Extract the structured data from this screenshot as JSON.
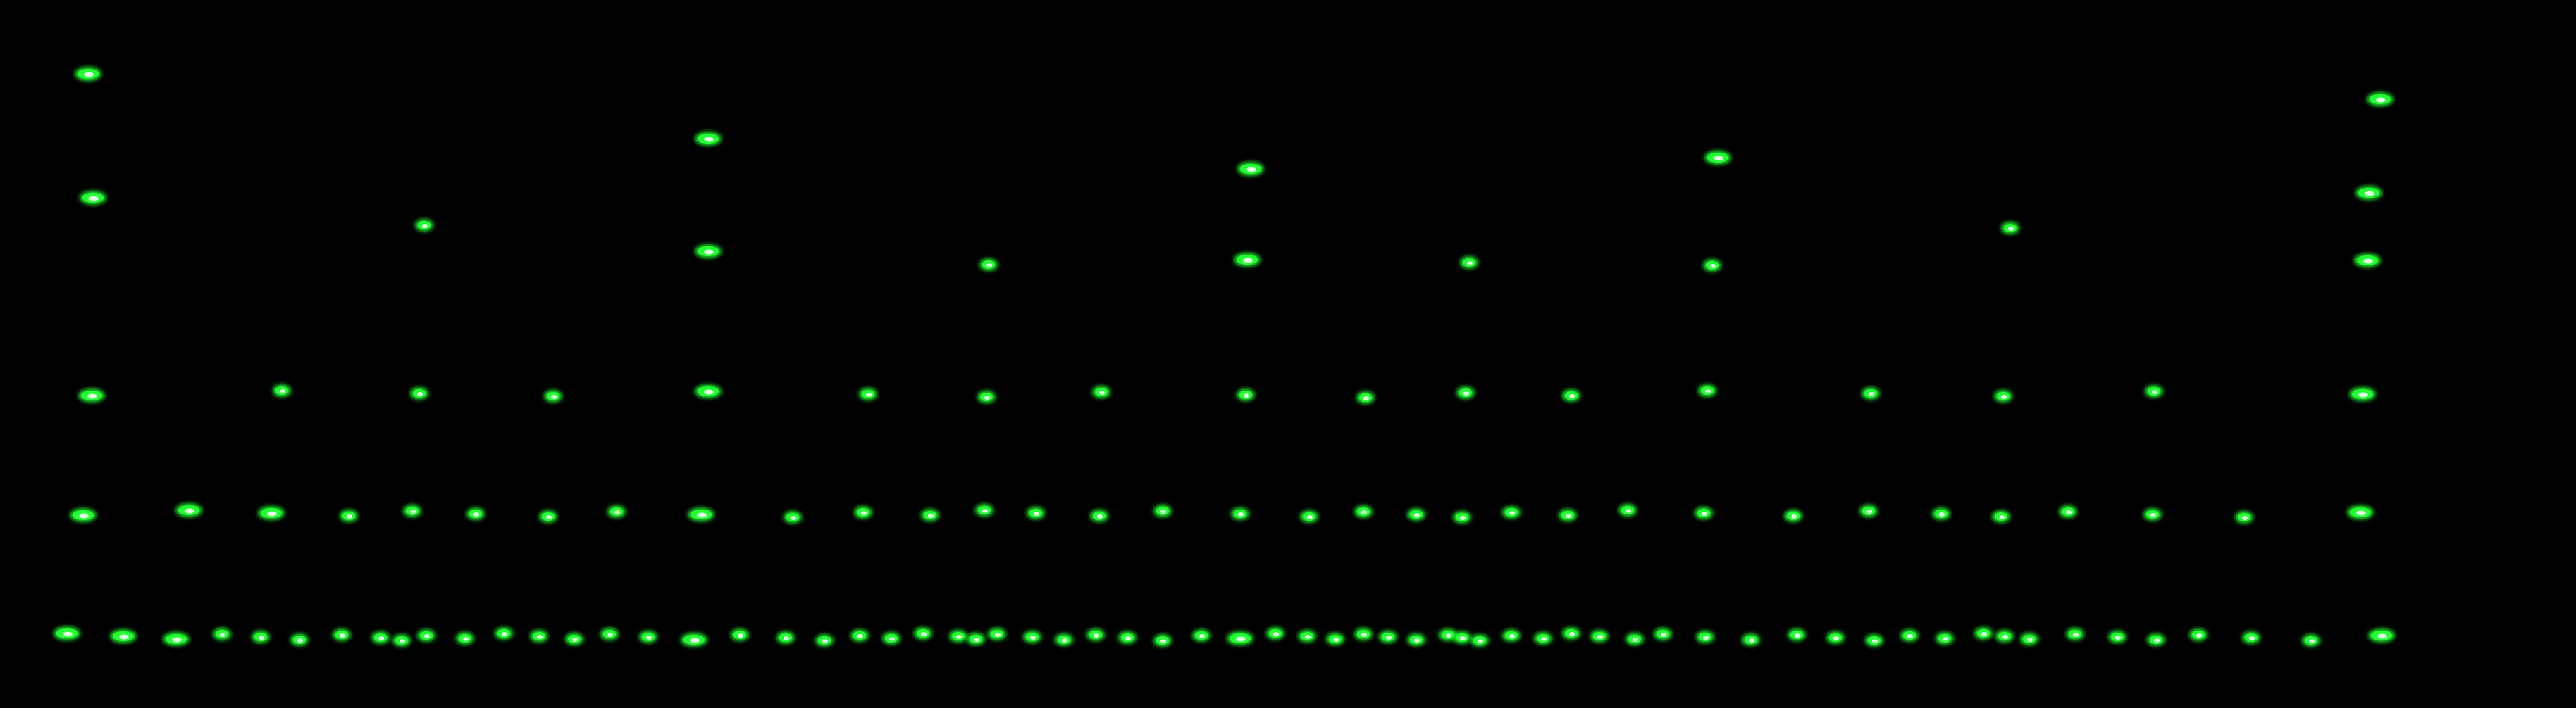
{
  "image": {
    "background_color": "#000000",
    "glow_color": "#22ff33",
    "core_color": "#dfffe0",
    "subject": "green-fluorescent-spots-on-black"
  }
}
